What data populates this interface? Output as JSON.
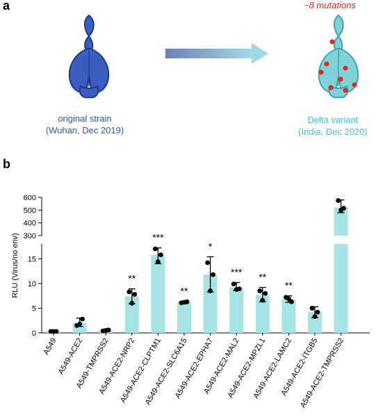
{
  "panel_a": {
    "label": "a",
    "left_caption_line1": "original strain",
    "left_caption_line2": "(Wuhan, Dec 2019)",
    "right_caption_line1": "Delta variant",
    "right_caption_line2": "(India, Dec 2020)",
    "mutations_label": "~8 mutations",
    "left_color": "#3a5dbf",
    "right_color": "#7fd3d8",
    "mutation_color": "#e8231a",
    "left_icon": "spike-protein-icon",
    "right_icon": "spike-protein-icon",
    "arrow_icon": "gradient-arrow-icon"
  },
  "panel_b": {
    "label": "b",
    "ylabel": "RLU (Virus/no env)"
  },
  "chart_data": {
    "type": "bar",
    "broken_axis": true,
    "bar_color": "#a6e3e4",
    "categories": [
      "A549",
      "A549-ACE2",
      "A549-TMPRSS2",
      "A549-ACE2-NRP2",
      "A549-ACE2-CLPTM1",
      "A549-ACE2-SLC6A15",
      "A549-ACE2-EPHA7",
      "A549-ACE2-MAL2",
      "A549-ACE2-MPZL1",
      "A549-ACE2-LAMC2",
      "A549-ACE2-ITGB5",
      "A549-ACE2-TMPRSS2"
    ],
    "values": [
      0.3,
      2.0,
      0.5,
      7.4,
      15.8,
      6.2,
      11.8,
      9.2,
      7.7,
      6.8,
      4.2,
      520
    ],
    "error_low": [
      0.2,
      1.3,
      0.3,
      5.9,
      14.0,
      5.9,
      8.3,
      8.6,
      6.3,
      6.2,
      3.1,
      480
    ],
    "error_high": [
      0.5,
      3.0,
      0.7,
      8.9,
      17.2,
      6.4,
      15.4,
      10.2,
      9.2,
      7.5,
      5.3,
      580
    ],
    "points": [
      [
        0.3,
        0.3,
        0.3
      ],
      [
        1.5,
        2.8,
        1.8
      ],
      [
        0.4,
        0.6,
        0.5
      ],
      [
        8.3,
        7.8,
        6.0
      ],
      [
        17.0,
        15.8,
        14.4
      ],
      [
        6.1,
        6.3,
        6.2
      ],
      [
        14.2,
        11.8,
        8.5
      ],
      [
        9.9,
        8.9,
        8.8
      ],
      [
        8.5,
        8.0,
        6.6
      ],
      [
        7.2,
        6.3,
        6.9
      ],
      [
        5.0,
        4.2,
        3.3
      ],
      [
        575,
        515,
        500
      ]
    ],
    "significance": [
      "",
      "",
      "",
      "**",
      "***",
      "**",
      "*",
      "***",
      "**",
      "**",
      "",
      ""
    ],
    "lower_segment": {
      "ylim": [
        0,
        18
      ],
      "ticks": [
        0,
        5,
        10,
        15
      ]
    },
    "upper_segment": {
      "ylim": [
        300,
        600
      ],
      "ticks": [
        300,
        400,
        500,
        600
      ]
    }
  }
}
